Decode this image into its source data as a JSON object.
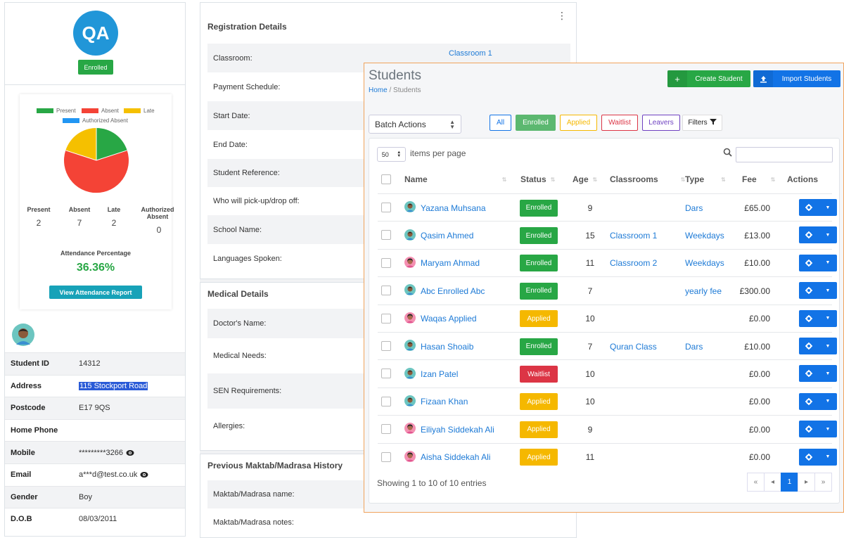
{
  "profile": {
    "initials": "QA",
    "status_badge": "Enrolled",
    "legend": [
      "Present",
      "Absent",
      "Late",
      "Authorized Absent"
    ],
    "colors": {
      "present": "#28a745",
      "absent": "#f44336",
      "late": "#f5c000",
      "authorized": "#2196f3"
    },
    "stats": [
      {
        "label": "Present",
        "value": "2"
      },
      {
        "label": "Absent",
        "value": "7"
      },
      {
        "label": "Late",
        "value": "2"
      },
      {
        "label": "Authorized Absent",
        "value": "0"
      }
    ],
    "attendance_title": "Attendance Percentage",
    "attendance_pct": "36.36%",
    "report_button": "View Attendance Report",
    "fields": [
      {
        "label": "Student ID",
        "value": "14312"
      },
      {
        "label": "Address",
        "value": "115 Stockport Road"
      },
      {
        "label": "Postcode",
        "value": "E17 9QS"
      },
      {
        "label": "Home Phone",
        "value": ""
      },
      {
        "label": "Mobile",
        "value": "*********3266"
      },
      {
        "label": "Email",
        "value": "a***d@test.co.uk"
      },
      {
        "label": "Gender",
        "value": "Boy"
      },
      {
        "label": "D.O.B",
        "value": "08/03/2011"
      }
    ]
  },
  "registration": {
    "title": "Registration Details",
    "rows": [
      {
        "label": "Classroom:",
        "value": "Classroom 1"
      },
      {
        "label": "Payment Schedule:"
      },
      {
        "label": "Start Date:"
      },
      {
        "label": "End Date:"
      },
      {
        "label": "Student Reference:"
      },
      {
        "label": "Who will pick-up/drop off:"
      },
      {
        "label": "School Name:"
      },
      {
        "label": "Languages Spoken:"
      }
    ]
  },
  "medical": {
    "title": "Medical Details",
    "rows": [
      "Doctor's Name:",
      "Medical Needs:",
      "SEN Requirements:",
      "Allergies:"
    ]
  },
  "history": {
    "title": "Previous Maktab/Madrasa History",
    "rows": [
      "Maktab/Madrasa name:",
      "Maktab/Madrasa notes:"
    ]
  },
  "students": {
    "title": "Students",
    "breadcrumb_home": "Home",
    "breadcrumb_sep": " / ",
    "breadcrumb_current": "Students",
    "create_button": "Create Student",
    "import_button": "Import Students",
    "batch_actions": "Batch Actions",
    "filters": [
      "All",
      "Enrolled",
      "Applied",
      "Waitlist",
      "Leavers"
    ],
    "filters_label": "Filters",
    "items_per_page_value": "50",
    "items_per_page_label": "items per page",
    "columns": [
      "Name",
      "Status",
      "Age",
      "Classrooms",
      "Type",
      "Fee",
      "Actions"
    ],
    "rows": [
      {
        "name": "Yazana Muhsana",
        "status": "Enrolled",
        "age": "9",
        "classroom": "",
        "type": "Dars",
        "fee": "£65.00",
        "gender": "boy"
      },
      {
        "name": "Qasim Ahmed",
        "status": "Enrolled",
        "age": "15",
        "classroom": "Classroom 1",
        "type": "Weekdays",
        "fee": "£13.00",
        "gender": "boy"
      },
      {
        "name": "Maryam Ahmad",
        "status": "Enrolled",
        "age": "11",
        "classroom": "Classroom 2",
        "type": "Weekdays",
        "fee": "£10.00",
        "gender": "girl"
      },
      {
        "name": "Abc Enrolled Abc",
        "status": "Enrolled",
        "age": "7",
        "classroom": "",
        "type": "yearly fee",
        "fee": "£300.00",
        "gender": "boy"
      },
      {
        "name": "Waqas Applied",
        "status": "Applied",
        "age": "10",
        "classroom": "",
        "type": "",
        "fee": "£0.00",
        "gender": "girl"
      },
      {
        "name": "Hasan Shoaib",
        "status": "Enrolled",
        "age": "7",
        "classroom": "Quran Class",
        "type": "Dars",
        "fee": "£10.00",
        "gender": "boy"
      },
      {
        "name": "Izan Patel",
        "status": "Waitlist",
        "age": "10",
        "classroom": "",
        "type": "",
        "fee": "£0.00",
        "gender": "boy"
      },
      {
        "name": "Fizaan Khan",
        "status": "Applied",
        "age": "10",
        "classroom": "",
        "type": "",
        "fee": "£0.00",
        "gender": "boy"
      },
      {
        "name": "Eiliyah Siddekah Ali",
        "status": "Applied",
        "age": "9",
        "classroom": "",
        "type": "",
        "fee": "£0.00",
        "gender": "girl"
      },
      {
        "name": "Aisha Siddekah Ali",
        "status": "Applied",
        "age": "11",
        "classroom": "",
        "type": "",
        "fee": "£0.00",
        "gender": "girl"
      }
    ],
    "showing": "Showing 1 to 10 of 10 entries",
    "pagination": [
      "«",
      "◂",
      "1",
      "▸",
      "»"
    ]
  }
}
